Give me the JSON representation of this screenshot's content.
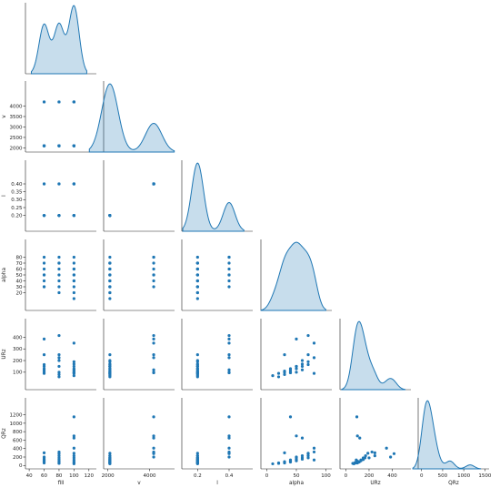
{
  "chart_data": {
    "type": "scatter",
    "subtype": "pairplot-lower-corner",
    "diagonal": "kde",
    "grid": false,
    "legend": "none",
    "color": "#1f77b4",
    "variables": [
      {
        "name": "fill",
        "lim": [
          35,
          130
        ],
        "ticks": [
          40,
          60,
          80,
          100,
          120
        ],
        "tick_labels": [
          "40",
          "60",
          "80",
          "100",
          "120"
        ]
      },
      {
        "name": "v",
        "lim": [
          1800,
          5200
        ],
        "ticks": [
          2000,
          2500,
          3000,
          3500,
          4000
        ],
        "tick_labels": [
          "2000",
          "2500",
          "3000",
          "3500",
          "4000"
        ],
        "xticks": [
          2000,
          4000
        ],
        "xtick_labels": [
          "2000",
          "4000"
        ]
      },
      {
        "name": "l",
        "lim": [
          0.1,
          0.55
        ],
        "ticks": [
          0.2,
          0.25,
          0.3,
          0.35,
          0.4
        ],
        "tick_labels": [
          "0.20",
          "0.25",
          "0.30",
          "0.35",
          "0.40"
        ],
        "xticks": [
          0.2,
          0.4
        ],
        "xtick_labels": [
          "0.2",
          "0.4"
        ]
      },
      {
        "name": "alpha",
        "lim": [
          -10,
          110
        ],
        "ticks": [
          20,
          30,
          40,
          50,
          60,
          70,
          80
        ],
        "tick_labels": [
          "20",
          "30",
          "40",
          "50",
          "60",
          "70",
          "80"
        ],
        "xticks": [
          0,
          50,
          100
        ],
        "xtick_labels": [
          "0",
          "50",
          "100"
        ]
      },
      {
        "name": "URz",
        "lim": [
          -50,
          560
        ],
        "ticks": [
          100,
          200,
          300,
          400
        ],
        "tick_labels": [
          "100",
          "200",
          "300",
          "400"
        ],
        "xticks": [
          0,
          200,
          400
        ],
        "xtick_labels": [
          "0",
          "200",
          "400"
        ]
      },
      {
        "name": "QRz",
        "lim": [
          -80,
          1600
        ],
        "ticks": [
          0,
          200,
          400,
          600,
          800,
          1000,
          1200
        ],
        "tick_labels": [
          "0",
          "200",
          "400",
          "600",
          "800",
          "1000",
          "1200"
        ],
        "xticks": [
          0,
          500,
          1000,
          1500
        ],
        "xtick_labels": [
          "0",
          "500",
          "1000",
          "1500"
        ]
      }
    ],
    "rows": [
      {
        "fill": 60,
        "v": 2100,
        "l": 0.2,
        "alpha": 30,
        "URz": 100,
        "QRz": 60
      },
      {
        "fill": 60,
        "v": 2100,
        "l": 0.2,
        "alpha": 40,
        "URz": 115,
        "QRz": 80
      },
      {
        "fill": 60,
        "v": 2100,
        "l": 0.2,
        "alpha": 50,
        "URz": 130,
        "QRz": 110
      },
      {
        "fill": 60,
        "v": 2100,
        "l": 0.2,
        "alpha": 60,
        "URz": 150,
        "QRz": 150
      },
      {
        "fill": 60,
        "v": 2100,
        "l": 0.2,
        "alpha": 70,
        "URz": 165,
        "QRz": 180
      },
      {
        "fill": 60,
        "v": 2100,
        "l": 0.2,
        "alpha": 80,
        "URz": 90,
        "QRz": 130
      },
      {
        "fill": 60,
        "v": 4200,
        "l": 0.4,
        "alpha": 30,
        "URz": 250,
        "QRz": 300
      },
      {
        "fill": 60,
        "v": 4200,
        "l": 0.4,
        "alpha": 50,
        "URz": 385,
        "QRz": 200
      },
      {
        "fill": 80,
        "v": 2100,
        "l": 0.2,
        "alpha": 20,
        "URz": 60,
        "QRz": 50
      },
      {
        "fill": 80,
        "v": 2100,
        "l": 0.2,
        "alpha": 30,
        "URz": 80,
        "QRz": 70
      },
      {
        "fill": 80,
        "v": 2100,
        "l": 0.2,
        "alpha": 40,
        "URz": 100,
        "QRz": 100
      },
      {
        "fill": 80,
        "v": 2100,
        "l": 0.2,
        "alpha": 50,
        "URz": 150,
        "QRz": 140
      },
      {
        "fill": 80,
        "v": 2100,
        "l": 0.2,
        "alpha": 60,
        "URz": 200,
        "QRz": 180
      },
      {
        "fill": 80,
        "v": 2100,
        "l": 0.2,
        "alpha": 70,
        "URz": 250,
        "QRz": 230
      },
      {
        "fill": 80,
        "v": 4200,
        "l": 0.4,
        "alpha": 70,
        "URz": 415,
        "QRz": 280
      },
      {
        "fill": 80,
        "v": 4200,
        "l": 0.4,
        "alpha": 80,
        "URz": 225,
        "QRz": 320
      },
      {
        "fill": 100,
        "v": 2100,
        "l": 0.2,
        "alpha": 10,
        "URz": 70,
        "QRz": 40
      },
      {
        "fill": 100,
        "v": 2100,
        "l": 0.2,
        "alpha": 20,
        "URz": 90,
        "QRz": 60
      },
      {
        "fill": 100,
        "v": 2100,
        "l": 0.2,
        "alpha": 30,
        "URz": 110,
        "QRz": 90
      },
      {
        "fill": 100,
        "v": 2100,
        "l": 0.2,
        "alpha": 40,
        "URz": 130,
        "QRz": 130
      },
      {
        "fill": 100,
        "v": 2100,
        "l": 0.2,
        "alpha": 50,
        "URz": 150,
        "QRz": 180
      },
      {
        "fill": 100,
        "v": 2100,
        "l": 0.2,
        "alpha": 60,
        "URz": 170,
        "QRz": 230
      },
      {
        "fill": 100,
        "v": 2100,
        "l": 0.2,
        "alpha": 70,
        "URz": 190,
        "QRz": 290
      },
      {
        "fill": 100,
        "v": 4200,
        "l": 0.4,
        "alpha": 80,
        "URz": 350,
        "QRz": 410
      },
      {
        "fill": 100,
        "v": 4200,
        "l": 0.4,
        "alpha": 60,
        "URz": 120,
        "QRz": 650
      },
      {
        "fill": 100,
        "v": 4200,
        "l": 0.4,
        "alpha": 50,
        "URz": 100,
        "QRz": 700
      },
      {
        "fill": 100,
        "v": 4200,
        "l": 0.4,
        "alpha": 40,
        "URz": 95,
        "QRz": 1150
      }
    ]
  }
}
